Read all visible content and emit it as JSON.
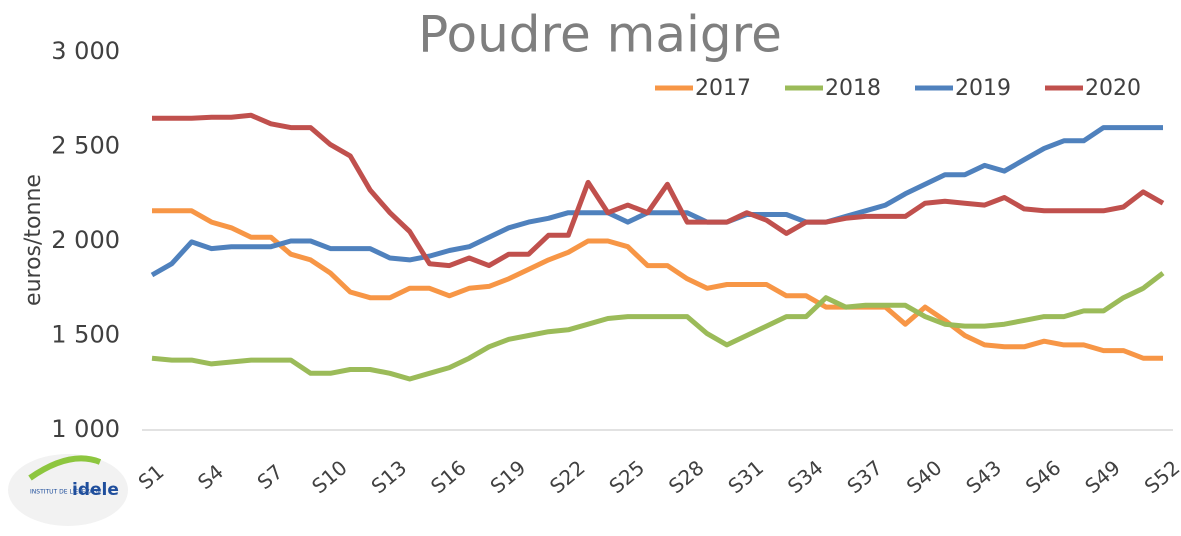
{
  "chart_data": {
    "type": "line",
    "title": "Poudre maigre",
    "y_label": "euros/tonne",
    "categories": [
      "S1",
      null,
      null,
      "S4",
      null,
      null,
      "S7",
      null,
      null,
      "S10",
      null,
      null,
      "S13",
      null,
      null,
      "S16",
      null,
      null,
      "S19",
      null,
      null,
      "S22",
      null,
      null,
      "S25",
      null,
      null,
      "S28",
      null,
      null,
      "S31",
      null,
      null,
      "S34",
      null,
      null,
      "S37",
      null,
      null,
      "S40",
      null,
      null,
      "S43",
      null,
      null,
      "S46",
      null,
      null,
      "S49",
      null,
      null,
      "S52"
    ],
    "series": [
      {
        "name": "2017",
        "color": "#f79646",
        "values": [
          2160,
          2160,
          2160,
          2100,
          2070,
          2020,
          2020,
          1930,
          1900,
          1830,
          1730,
          1700,
          1700,
          1750,
          1750,
          1710,
          1750,
          1760,
          1800,
          1850,
          1900,
          1940,
          2000,
          2000,
          1970,
          1870,
          1870,
          1800,
          1750,
          1770,
          1770,
          1770,
          1710,
          1710,
          1650,
          1650,
          1650,
          1650,
          1560,
          1650,
          1580,
          1500,
          1450,
          1440,
          1440,
          1470,
          1450,
          1450,
          1420,
          1420,
          1380,
          1380
        ]
      },
      {
        "name": "2018",
        "color": "#9bbb59",
        "values": [
          1380,
          1370,
          1370,
          1350,
          1360,
          1370,
          1370,
          1370,
          1300,
          1300,
          1320,
          1320,
          1300,
          1270,
          1300,
          1330,
          1380,
          1440,
          1480,
          1500,
          1520,
          1530,
          1560,
          1590,
          1600,
          1600,
          1600,
          1600,
          1510,
          1450,
          1500,
          1550,
          1600,
          1600,
          1700,
          1650,
          1660,
          1660,
          1660,
          1600,
          1560,
          1550,
          1550,
          1560,
          1580,
          1600,
          1600,
          1630,
          1630,
          1700,
          1750,
          1830
        ]
      },
      {
        "name": "2019",
        "color": "#4f81bd",
        "values": [
          1820,
          1880,
          1995,
          1960,
          1970,
          1970,
          1970,
          2000,
          2000,
          1960,
          1960,
          1960,
          1910,
          1900,
          1920,
          1950,
          1970,
          2020,
          2070,
          2100,
          2120,
          2150,
          2150,
          2150,
          2100,
          2150,
          2150,
          2150,
          2100,
          2100,
          2140,
          2140,
          2140,
          2100,
          2100,
          2130,
          2160,
          2190,
          2250,
          2300,
          2350,
          2350,
          2400,
          2370,
          2430,
          2490,
          2530,
          2530,
          2600,
          2600,
          2600,
          2600
        ]
      },
      {
        "name": "2020",
        "color": "#c0504d",
        "values": [
          2650,
          2650,
          2650,
          2655,
          2655,
          2665,
          2620,
          2600,
          2600,
          2510,
          2450,
          2270,
          2150,
          2050,
          1880,
          1870,
          1910,
          1870,
          1930,
          1930,
          2030,
          2030,
          2310,
          2150,
          2190,
          2150,
          2300,
          2100,
          2100,
          2100,
          2150,
          2110,
          2040,
          2100,
          2100,
          2120,
          2130,
          2130,
          2130,
          2200,
          2210,
          2200,
          2190,
          2230,
          2170,
          2160,
          2160,
          2160,
          2160,
          2180,
          2260,
          2200
        ]
      }
    ],
    "ylim": [
      1000,
      3000
    ],
    "yticks": [
      {
        "value": 1000,
        "label": "1 000"
      },
      {
        "value": 1500,
        "label": "1 500"
      },
      {
        "value": 2000,
        "label": "2 000"
      },
      {
        "value": 2500,
        "label": "2 500"
      },
      {
        "value": 3000,
        "label": "3 000"
      }
    ],
    "grid": false,
    "legend": "top-right"
  },
  "logo": {
    "small": "INSTITUT DE L'ÉLEVAGE",
    "brand": "idele"
  }
}
